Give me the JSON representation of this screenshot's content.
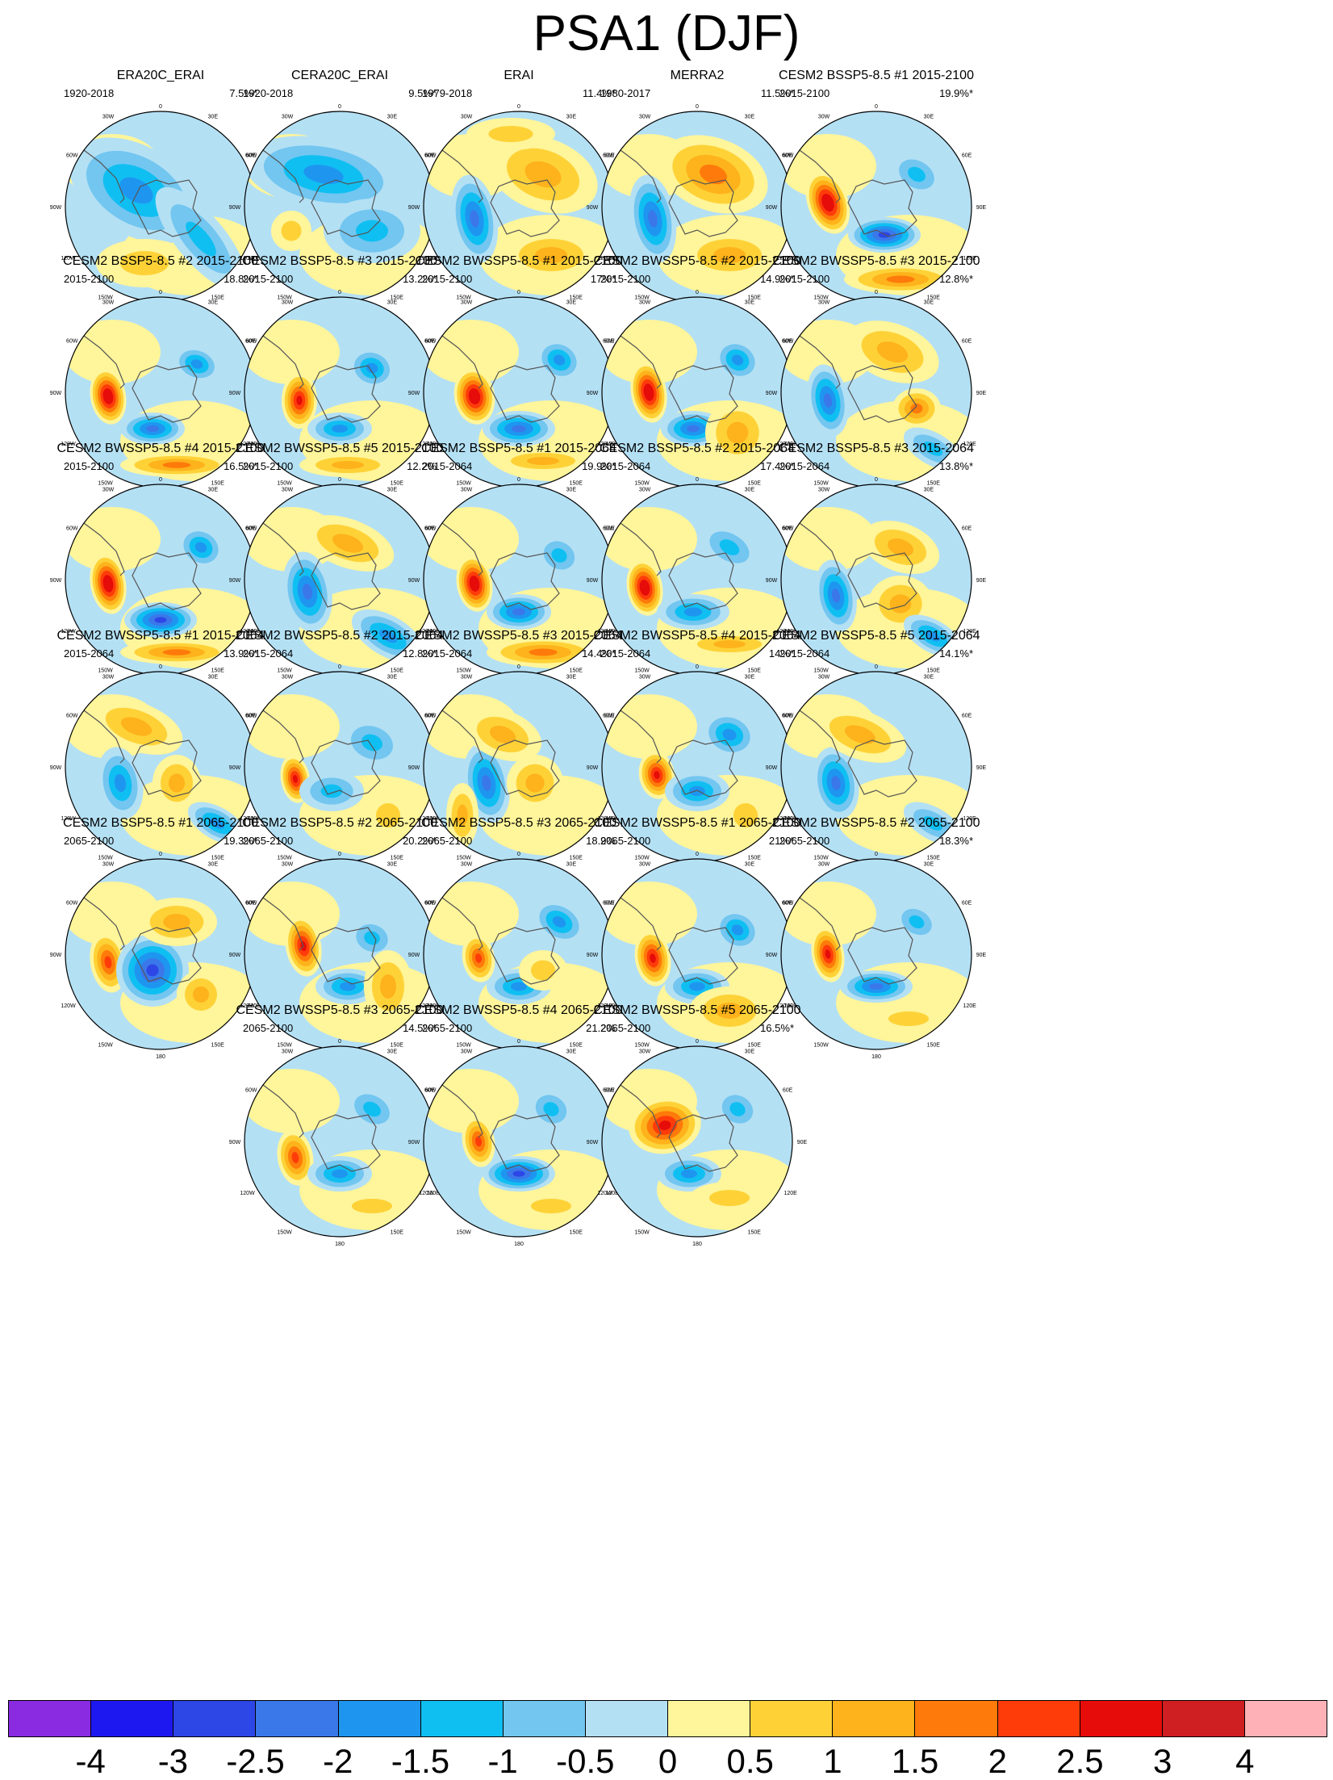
{
  "title": "PSA1 (DJF)",
  "map_labels": {
    "top": "0",
    "right": "90E",
    "bottom": "180",
    "left": "90W",
    "tl1": "30W",
    "tl2": "60W",
    "tr1": "30E",
    "tr2": "60E",
    "bl1": "120W",
    "bl2": "150W",
    "br1": "120E",
    "br2": "150E"
  },
  "panels": [
    {
      "title": "ERA20C_ERAI",
      "period": "1920-2018",
      "percent": "7.5%*"
    },
    {
      "title": "CERA20C_ERAI",
      "period": "1920-2018",
      "percent": "9.5%*"
    },
    {
      "title": "ERAI",
      "period": "1979-2018",
      "percent": "11.4%*"
    },
    {
      "title": "MERRA2",
      "period": "1980-2017",
      "percent": "11.5%*"
    },
    {
      "title": "CESM2 BSSP5-8.5 #1 2015-2100",
      "period": "2015-2100",
      "percent": "19.9%*"
    },
    {
      "title": "CESM2 BSSP5-8.5 #2 2015-2100",
      "period": "2015-2100",
      "percent": "18.8%*"
    },
    {
      "title": "CESM2 BSSP5-8.5 #3 2015-2100",
      "period": "2015-2100",
      "percent": "13.2%*"
    },
    {
      "title": "CESM2 BWSSP5-8.5 #1 2015-2100",
      "period": "2015-2100",
      "percent": "17%*"
    },
    {
      "title": "CESM2 BWSSP5-8.5 #2 2015-2100",
      "period": "2015-2100",
      "percent": "14.9%*"
    },
    {
      "title": "CESM2 BWSSP5-8.5 #3 2015-2100",
      "period": "2015-2100",
      "percent": "12.8%*"
    },
    {
      "title": "CESM2 BWSSP5-8.5 #4 2015-2100",
      "period": "2015-2100",
      "percent": "16.5%*"
    },
    {
      "title": "CESM2 BWSSP5-8.5 #5 2015-2100",
      "period": "2015-2100",
      "percent": "12.2%"
    },
    {
      "title": "CESM2 BSSP5-8.5 #1 2015-2064",
      "period": "2015-2064",
      "percent": "19.9%*"
    },
    {
      "title": "CESM2 BSSP5-8.5 #2 2015-2064",
      "period": "2015-2064",
      "percent": "17.4%*"
    },
    {
      "title": "CESM2 BSSP5-8.5 #3 2015-2064",
      "period": "2015-2064",
      "percent": "13.8%*"
    },
    {
      "title": "CESM2 BWSSP5-8.5 #1 2015-2064",
      "period": "2015-2064",
      "percent": "13.9%*"
    },
    {
      "title": "CESM2 BWSSP5-8.5 #2 2015-2064",
      "period": "2015-2064",
      "percent": "12.8%*"
    },
    {
      "title": "CESM2 BWSSP5-8.5 #3 2015-2064",
      "period": "2015-2064",
      "percent": "14.4%*"
    },
    {
      "title": "CESM2 BWSSP5-8.5 #4 2015-2064",
      "period": "2015-2064",
      "percent": "14%*"
    },
    {
      "title": "CESM2 BWSSP5-8.5 #5 2015-2064",
      "period": "2015-2064",
      "percent": "14.1%*"
    },
    {
      "title": "CESM2 BSSP5-8.5 #1 2065-2100",
      "period": "2065-2100",
      "percent": "19.3%*"
    },
    {
      "title": "CESM2 BSSP5-8.5 #2 2065-2100",
      "period": "2065-2100",
      "percent": "20.2%*"
    },
    {
      "title": "CESM2 BSSP5-8.5 #3 2065-2100",
      "period": "2065-2100",
      "percent": "18.9%"
    },
    {
      "title": "CESM2 BWSSP5-8.5 #1 2065-2100",
      "period": "2065-2100",
      "percent": "21%*"
    },
    {
      "title": "CESM2 BWSSP5-8.5 #2 2065-2100",
      "period": "2065-2100",
      "percent": "18.3%*"
    },
    {
      "title": "CESM2 BWSSP5-8.5 #3 2065-2100",
      "period": "2065-2100",
      "percent": "14.5%*"
    },
    {
      "title": "CESM2 BWSSP5-8.5 #4 2065-2100",
      "period": "2065-2100",
      "percent": "21.2%"
    },
    {
      "title": "CESM2 BWSSP5-8.5 #5 2065-2100",
      "period": "2065-2100",
      "percent": "16.5%*"
    }
  ],
  "colorbar": {
    "colors": [
      "#8a2be2",
      "#1e18f0",
      "#2d46e6",
      "#3a78ea",
      "#1e96f0",
      "#10bff2",
      "#72c6f0",
      "#b4e0f4",
      "#fff59a",
      "#fed237",
      "#feb21b",
      "#fe7a0a",
      "#fe3c0a",
      "#e60c0a",
      "#cf1f22",
      "#feb2b8"
    ],
    "labels": [
      "-4",
      "-3",
      "-2.5",
      "-2",
      "-1.5",
      "-1",
      "-0.5",
      "0",
      "0.5",
      "1",
      "1.5",
      "2",
      "2.5",
      "3",
      "4"
    ]
  }
}
